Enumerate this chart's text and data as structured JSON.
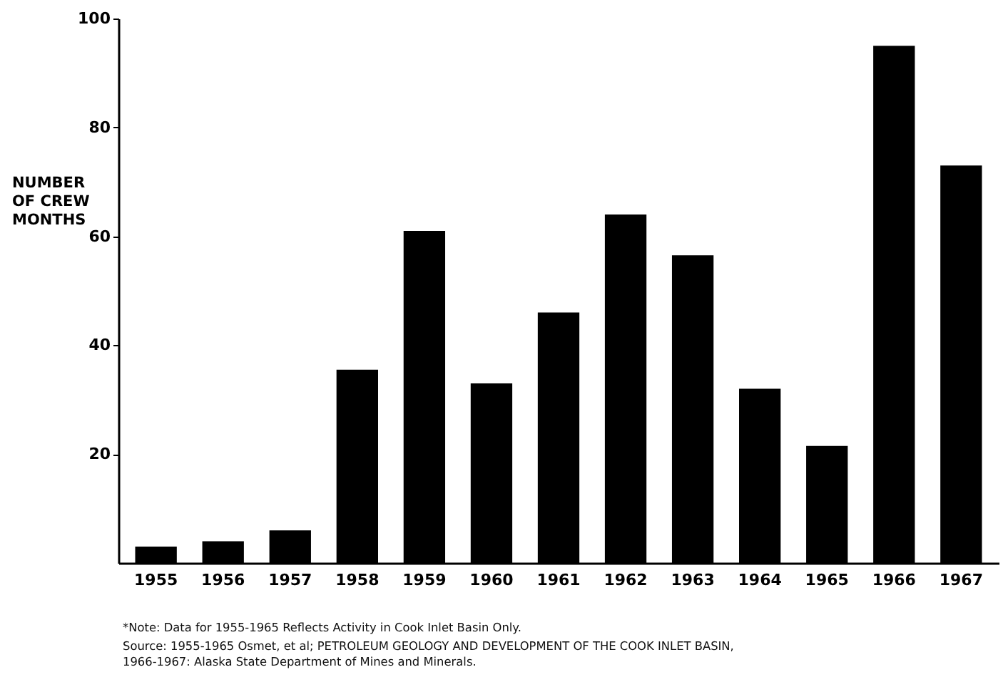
{
  "chart_data": {
    "type": "bar",
    "ylabel": "NUMBER OF CREW MONTHS",
    "categories": [
      "1955",
      "1956",
      "1957",
      "1958",
      "1959",
      "1960",
      "1961",
      "1962",
      "1963",
      "1964",
      "1965",
      "1966",
      "1967"
    ],
    "values": [
      3,
      4,
      6,
      35.5,
      61,
      33,
      46,
      64,
      56.5,
      32,
      21.5,
      95,
      73
    ],
    "color": "#000000",
    "ylim": [
      0,
      100
    ],
    "yticks": [
      20,
      40,
      60,
      80,
      100
    ],
    "grid": false,
    "annotations": [
      "*Note: Data for 1955-1965 Reflects Activity in Cook Inlet Basin Only.",
      "Source: 1955-1965 Osmet, et al; PETROLEUM GEOLOGY AND DEVELOPMENT OF THE COOK INLET BASIN, 1966-1967: Alaska State Department of Mines and Minerals."
    ]
  }
}
